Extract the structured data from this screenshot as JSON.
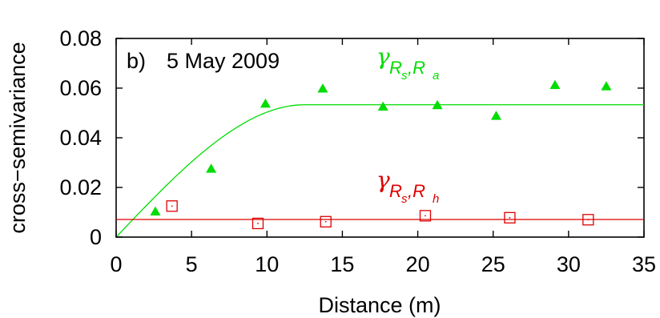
{
  "chart_data": {
    "type": "scatter",
    "panel_label": "b)",
    "title": "5 May 2009",
    "xlabel": "Distance (m)",
    "ylabel": "cross−semivariance",
    "xlim": [
      0,
      35
    ],
    "ylim": [
      0,
      0.08
    ],
    "xticks": [
      "0",
      "5",
      "10",
      "15",
      "20",
      "25",
      "30",
      "35"
    ],
    "yticks": [
      "0",
      "0.02",
      "0.04",
      "0.06",
      "0.08"
    ],
    "grid": false,
    "series": [
      {
        "label_symbol": "γ",
        "label_sub": "R",
        "label_subsub_1": "s",
        "label_comma": ",R",
        "label_subsub_2": "a",
        "color": "#00dd00",
        "marker": "filled-triangle",
        "points": [
          {
            "x": 2.6,
            "y": 0.0103
          },
          {
            "x": 6.3,
            "y": 0.0275
          },
          {
            "x": 9.9,
            "y": 0.0537
          },
          {
            "x": 13.7,
            "y": 0.0598
          },
          {
            "x": 17.7,
            "y": 0.0525
          },
          {
            "x": 21.3,
            "y": 0.0531
          },
          {
            "x": 25.2,
            "y": 0.0488
          },
          {
            "x": 29.1,
            "y": 0.0612
          },
          {
            "x": 32.5,
            "y": 0.0607
          }
        ],
        "fit": {
          "model": "spherical",
          "nugget": 0.0,
          "sill": 0.0533,
          "range": 12.5
        }
      },
      {
        "label_symbol": "γ",
        "label_sub": "R",
        "label_subsub_1": "s",
        "label_comma": ",R",
        "label_subsub_2": "h",
        "color": "#dd0000",
        "marker": "open-square",
        "points": [
          {
            "x": 3.7,
            "y": 0.0125
          },
          {
            "x": 9.4,
            "y": 0.0055
          },
          {
            "x": 13.9,
            "y": 0.0062
          },
          {
            "x": 20.5,
            "y": 0.0086
          },
          {
            "x": 26.1,
            "y": 0.0078
          },
          {
            "x": 31.3,
            "y": 0.007
          }
        ],
        "fit": {
          "model": "constant",
          "value": 0.0071
        }
      }
    ]
  }
}
